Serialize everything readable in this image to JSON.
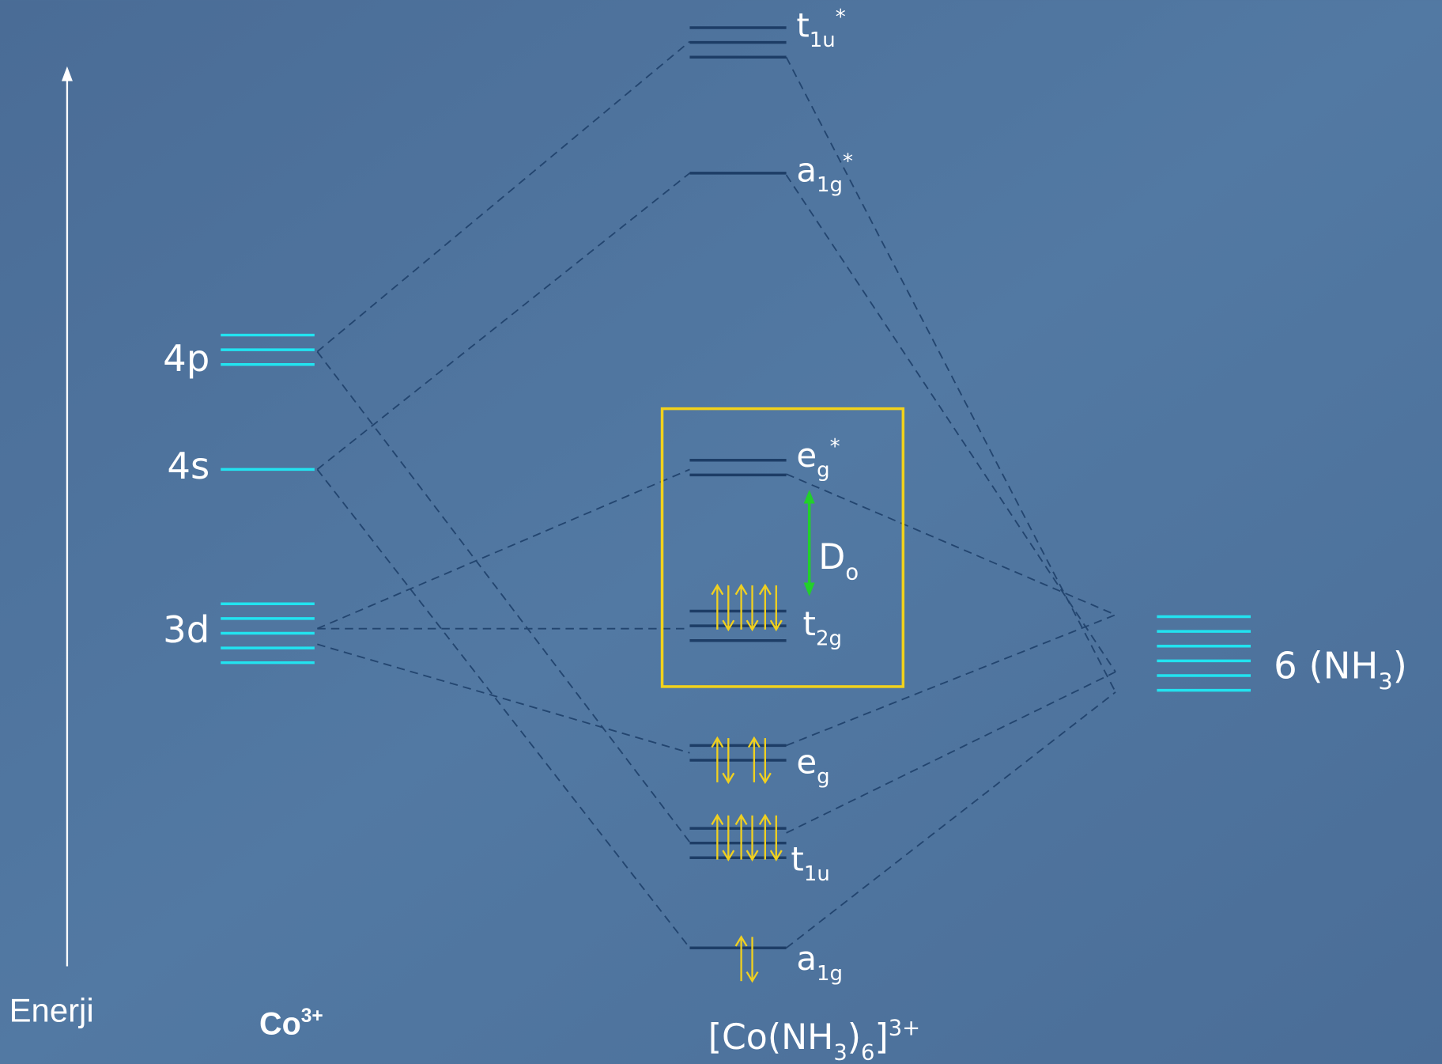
{
  "axis_label": "Enerji",
  "metal": {
    "label": [
      {
        "t": "Co"
      },
      {
        "sup": "3+"
      }
    ],
    "levels": [
      "4p",
      "4s",
      "3d"
    ]
  },
  "ligand": {
    "label": [
      {
        "t": "6 (NH"
      },
      {
        "sub": "3"
      },
      {
        "t": ")"
      }
    ]
  },
  "complex": {
    "label": [
      {
        "t": "[Co(NH"
      },
      {
        "sub": "3"
      },
      {
        "t": ")"
      },
      {
        "sub": "6"
      },
      {
        "t": "]"
      },
      {
        "sup": "3+"
      }
    ],
    "orbitals": [
      [
        {
          "t": "t"
        },
        {
          "sub": "1u"
        },
        {
          "sup": "*"
        }
      ],
      [
        {
          "t": "a"
        },
        {
          "sub": "1g"
        },
        {
          "sup": "*"
        }
      ],
      [
        {
          "t": "e"
        },
        {
          "sub": "g"
        },
        {
          "sup": "*"
        }
      ],
      [
        {
          "t": "t"
        },
        {
          "sub": "2g"
        }
      ],
      [
        {
          "t": "e"
        },
        {
          "sub": "g"
        }
      ],
      [
        {
          "t": "t"
        },
        {
          "sub": "1u"
        }
      ],
      [
        {
          "t": "a"
        },
        {
          "sub": "1g"
        }
      ]
    ],
    "splitting": [
      {
        "t": "D"
      },
      {
        "sub": "o"
      }
    ]
  }
}
